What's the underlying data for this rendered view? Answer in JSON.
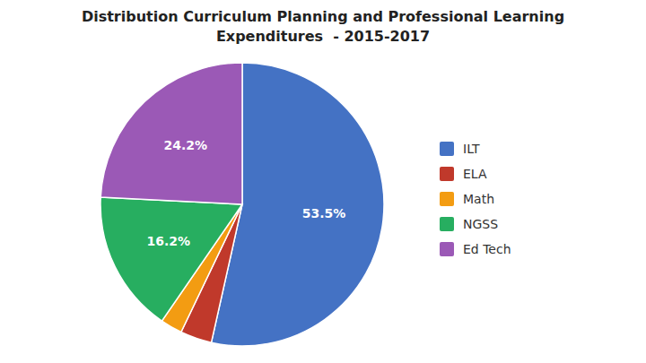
{
  "chart_data": {
    "type": "pie",
    "title": "Distribution Curriculum Planning and Professional Learning",
    "subtitle": "Expenditures  - 2015-2017",
    "categories": [
      "ILT",
      "ELA",
      "Math",
      "NGSS",
      "Ed Tech"
    ],
    "values": [
      53.5,
      3.6,
      2.5,
      16.2,
      24.2
    ],
    "value_labels": [
      "53.5%",
      null,
      null,
      "16.2%",
      "24.2%"
    ],
    "colors": [
      "#4472C4",
      "#C0392B",
      "#F39C12",
      "#27AE60",
      "#9B59B6"
    ],
    "data_labels": true,
    "legend": "right"
  }
}
